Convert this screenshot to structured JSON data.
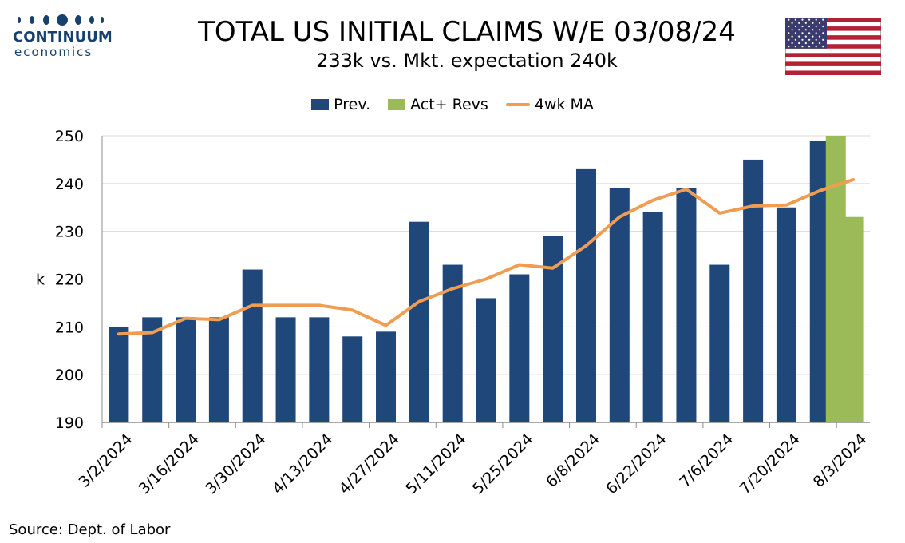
{
  "logo": {
    "name": "CONTINUUM",
    "sub": "economics"
  },
  "title": "TOTAL US INITIAL CLAIMS W/E 03/08/24",
  "subtitle": "233k vs. Mkt. expectation 240k",
  "source": "Source: Dept. of Labor",
  "colors": {
    "prev": "#1f477a",
    "act": "#9bbb59",
    "ma": "#f09d52",
    "brand": "#17406d"
  },
  "chart_data": {
    "type": "bar",
    "ylabel": "k",
    "ylim": [
      190,
      250
    ],
    "yticks": [
      "190",
      "200",
      "210",
      "220",
      "230",
      "240",
      "250"
    ],
    "xtick_labels": [
      "3/2/2024",
      "3/16/2024",
      "3/30/2024",
      "4/13/2024",
      "4/27/2024",
      "5/11/2024",
      "5/25/2024",
      "6/8/2024",
      "6/22/2024",
      "7/6/2024",
      "7/20/2024",
      "8/3/2024"
    ],
    "grid": true,
    "legend_position": "top",
    "series": [
      {
        "name": "Prev.",
        "kind": "bar",
        "color": "#1f477a",
        "values": [
          210,
          212,
          212,
          212,
          222,
          212,
          212,
          208,
          209,
          232,
          223,
          216,
          221,
          229,
          243,
          239,
          234,
          239,
          223,
          245,
          235,
          249
        ]
      },
      {
        "name": "Act+ Revs",
        "kind": "bar",
        "color": "#9bbb59",
        "values": [
          250,
          233
        ]
      },
      {
        "name": "4wk MA",
        "kind": "line",
        "color": "#f09d52",
        "values": [
          208.5,
          208.8,
          211.8,
          211.5,
          214.5,
          214.5,
          214.5,
          213.5,
          210.3,
          215.3,
          218.0,
          220.0,
          223.0,
          222.3,
          227.0,
          233.0,
          236.5,
          238.8,
          233.8,
          235.3,
          235.5,
          238.5,
          240.8
        ]
      }
    ]
  }
}
